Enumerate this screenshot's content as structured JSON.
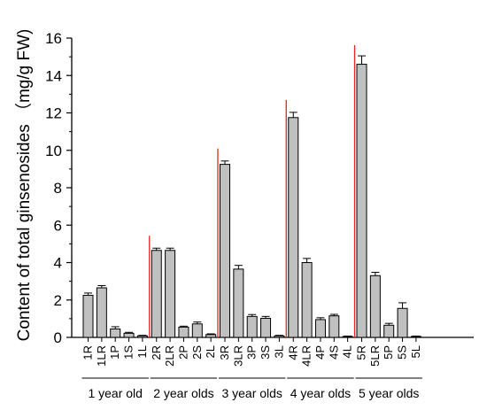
{
  "chart_data": {
    "type": "bar",
    "ylabel": "Content of total ginsenosides （mg/g FW)",
    "xlabel": "",
    "ylim": [
      0,
      16
    ],
    "yticks": [
      0,
      2,
      4,
      6,
      8,
      10,
      12,
      14,
      16
    ],
    "grid": false,
    "bar_color": "#c0c0c0",
    "separator_color": "#e8231f",
    "groups": [
      {
        "label": "1 year old",
        "categories": [
          "1R",
          "1LR",
          "1P",
          "1S",
          "1L"
        ],
        "values": [
          2.25,
          2.65,
          0.45,
          0.22,
          0.08
        ],
        "errors": [
          0.12,
          0.12,
          0.12,
          0.05,
          0.03
        ]
      },
      {
        "label": "2 year olds",
        "categories": [
          "2R",
          "2LR",
          "2P",
          "2S",
          "2L"
        ],
        "values": [
          4.65,
          4.65,
          0.55,
          0.72,
          0.15
        ],
        "errors": [
          0.12,
          0.12,
          0.05,
          0.1,
          0.04
        ]
      },
      {
        "label": "3 year olds",
        "categories": [
          "3R",
          "3LR",
          "3P",
          "3S",
          "3L"
        ],
        "values": [
          9.25,
          3.65,
          1.12,
          1.02,
          0.08
        ],
        "errors": [
          0.18,
          0.2,
          0.1,
          0.1,
          0.03
        ]
      },
      {
        "label": "4 year olds",
        "categories": [
          "4R",
          "4LR",
          "4P",
          "4S",
          "4L"
        ],
        "values": [
          11.75,
          4.0,
          0.95,
          1.15,
          0.05
        ],
        "errors": [
          0.28,
          0.22,
          0.1,
          0.08,
          0.02
        ]
      },
      {
        "label": "5 year olds",
        "categories": [
          "5R",
          "5LR",
          "5P",
          "5S",
          "5L"
        ],
        "values": [
          14.6,
          3.3,
          0.65,
          1.55,
          0.05
        ],
        "errors": [
          0.45,
          0.18,
          0.1,
          0.3,
          0.02
        ]
      }
    ]
  }
}
